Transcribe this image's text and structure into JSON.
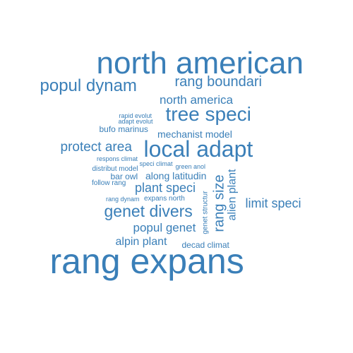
{
  "words": [
    {
      "text": "north american",
      "color": "#3a7fb8"
    },
    {
      "text": "rang expans",
      "color": "#3a7fb8"
    },
    {
      "text": "local adapt",
      "color": "#3a7fb8"
    },
    {
      "text": "tree speci",
      "color": "#3a7fb8"
    },
    {
      "text": "popul dynam",
      "color": "#3a7fb8"
    },
    {
      "text": "rang boundari",
      "color": "#3a7fb8"
    },
    {
      "text": "north america",
      "color": "#3a7fb8"
    },
    {
      "text": "genet divers",
      "color": "#3a7fb8"
    },
    {
      "text": "protect area",
      "color": "#3a7fb8"
    },
    {
      "text": "rang size",
      "color": "#3a7fb8"
    },
    {
      "text": "limit speci",
      "color": "#3a7fb8"
    },
    {
      "text": "alien plant",
      "color": "#3a7fb8"
    },
    {
      "text": "plant speci",
      "color": "#3a7fb8"
    },
    {
      "text": "popul genet",
      "color": "#3a7fb8"
    },
    {
      "text": "alpin plant",
      "color": "#3a7fb8"
    },
    {
      "text": "mechanist model",
      "color": "#3a7fb8"
    },
    {
      "text": "along latitudin",
      "color": "#3a7fb8"
    },
    {
      "text": "decad climat",
      "color": "#3a7fb8"
    },
    {
      "text": "bufo marinus",
      "color": "#3a7fb8"
    },
    {
      "text": "bar owl",
      "color": "#3a7fb8"
    },
    {
      "text": "rapid evolut",
      "color": "#3a7fb8"
    },
    {
      "text": "adapt evolut",
      "color": "#3a7fb8"
    },
    {
      "text": "respons climat",
      "color": "#3a7fb8"
    },
    {
      "text": "speci climat",
      "color": "#3a7fb8"
    },
    {
      "text": "green anol",
      "color": "#3a7fb8"
    },
    {
      "text": "distribut model",
      "color": "#3a7fb8"
    },
    {
      "text": "follow rang",
      "color": "#3a7fb8"
    },
    {
      "text": "rang dynam",
      "color": "#3a7fb8"
    },
    {
      "text": "expans north",
      "color": "#3a7fb8"
    },
    {
      "text": "genet structur",
      "color": "#3a7fb8"
    }
  ]
}
